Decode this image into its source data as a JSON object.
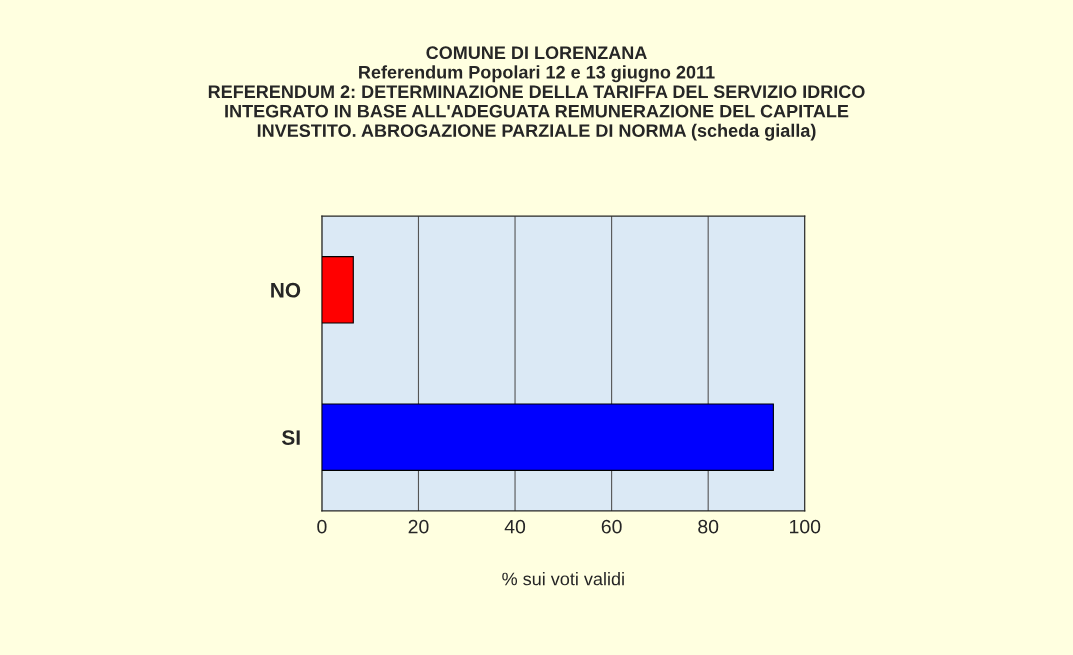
{
  "chart_data": {
    "type": "bar",
    "orientation": "horizontal",
    "title": "COMUNE DI LORENZANA\nReferendum Popolari 12 e 13 giugno 2011\nREFERENDUM 2: DETERMINAZIONE DELLA TARIFFA DEL SERVIZIO IDRICO\nINTEGRATO IN BASE ALL'ADEGUATA REMUNERAZIONE DEL CAPITALE\nINVESTITO. ABROGAZIONE PARZIALE DI NORMA (scheda gialla)",
    "categories": [
      "NO",
      "SI"
    ],
    "values": [
      6.5,
      93.5
    ],
    "colors": [
      "#ff0000",
      "#0000ff"
    ],
    "xlabel": "% sui voti validi",
    "xlim": [
      0,
      100
    ],
    "xticks": [
      0,
      20,
      40,
      60,
      80,
      100
    ],
    "grid": "x"
  }
}
